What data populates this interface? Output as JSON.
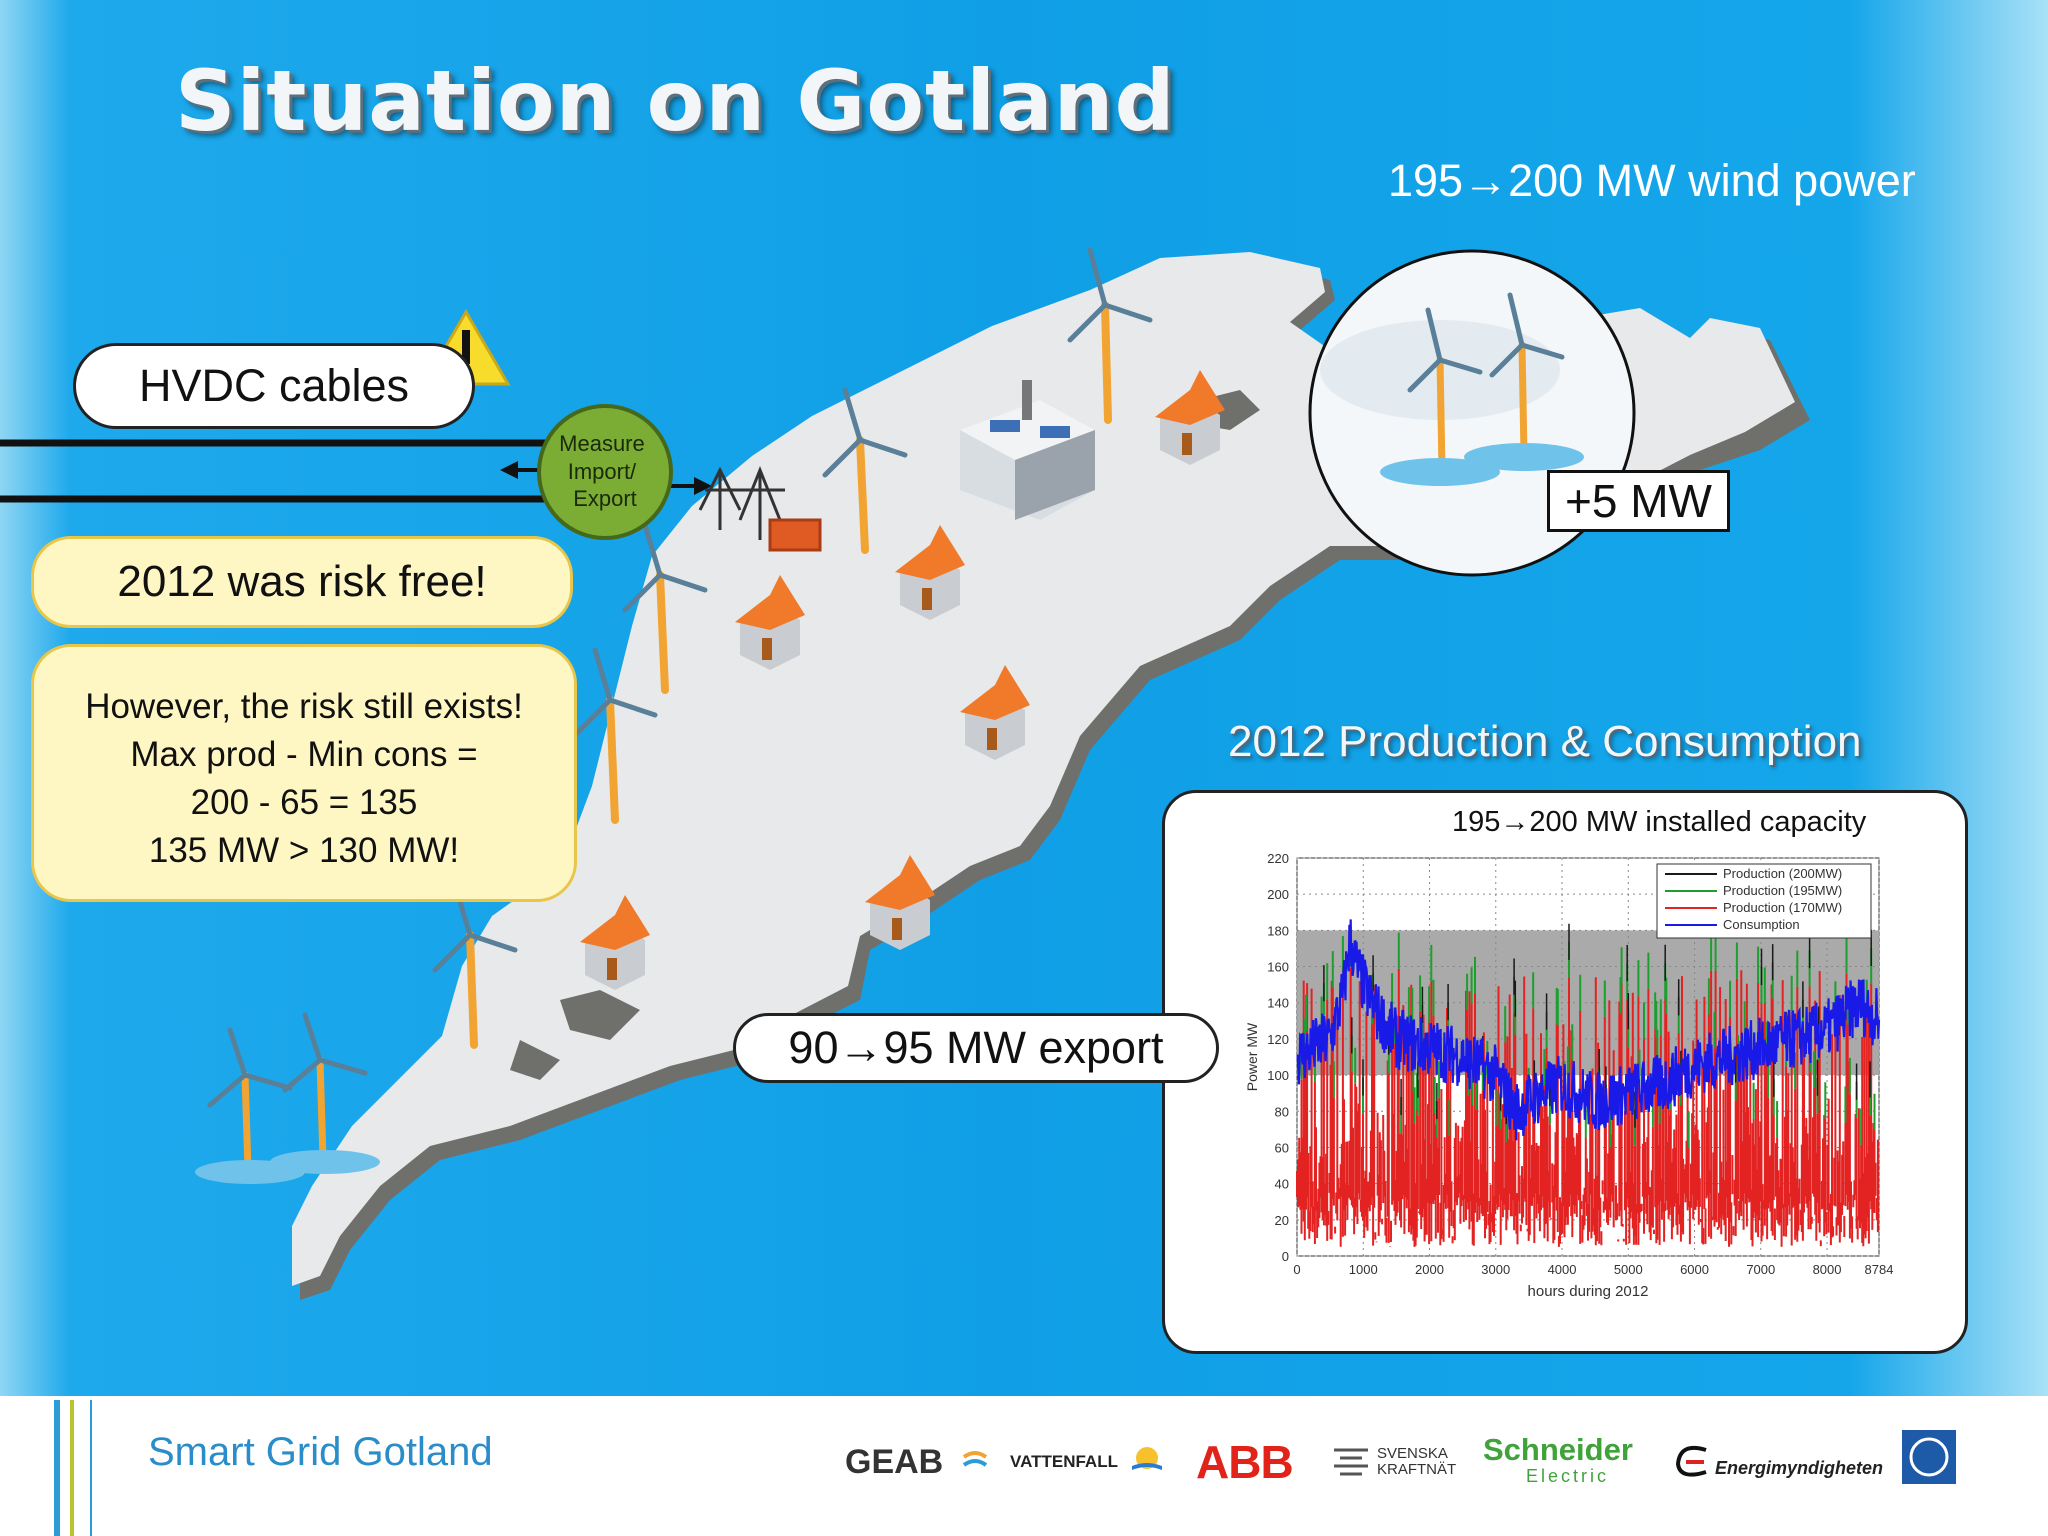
{
  "slide": {
    "title": "Situation on Gotland",
    "wind_caption": "195→200 MW wind power",
    "hvdc_label": "HVDC cables",
    "measure_lines": [
      "Measure",
      "Import/",
      "Export"
    ],
    "risk_free": "2012 was risk free!",
    "risk_lines": [
      "However, the risk still exists!",
      "Max prod - Min cons =",
      "200 - 65 = 135",
      "135 MW > 130 MW!"
    ],
    "plus_mw": "+5 MW",
    "export_label": "90→95 MW export",
    "chart_heading": "2012 Production & Consumption",
    "capacity_label": "195→200 MW installed capacity"
  },
  "chart_data": {
    "type": "line",
    "xlabel": "hours during 2012",
    "ylabel": "Power MW",
    "xlim": [
      0,
      8784
    ],
    "ylim": [
      0,
      220
    ],
    "x_ticks": [
      0,
      1000,
      2000,
      3000,
      4000,
      5000,
      6000,
      7000,
      8000,
      8784
    ],
    "y_ticks": [
      0,
      20,
      40,
      60,
      80,
      100,
      120,
      140,
      160,
      180,
      200,
      220
    ],
    "grid": true,
    "legend_position": "top-right",
    "shaded_band": [
      100,
      180
    ],
    "series": [
      {
        "name": "Production (200MW)",
        "color": "#1a1a1a"
      },
      {
        "name": "Production (195MW)",
        "color": "#1e9e2e"
      },
      {
        "name": "Production (170MW)",
        "color": "#e32222"
      },
      {
        "name": "Consumption",
        "color": "#1a1ae8"
      }
    ],
    "consumption_profile": {
      "x": [
        0,
        500,
        700,
        800,
        900,
        1000,
        1200,
        1500,
        2000,
        2500,
        3000,
        3300,
        3600,
        4000,
        4500,
        5000,
        5500,
        6000,
        6500,
        7000,
        7500,
        8000,
        8500,
        8784
      ],
      "y": [
        110,
        120,
        145,
        175,
        160,
        150,
        135,
        120,
        115,
        110,
        100,
        80,
        88,
        95,
        85,
        90,
        95,
        105,
        110,
        115,
        120,
        125,
        140,
        130
      ]
    }
  },
  "footer": {
    "project": "Smart Grid Gotland",
    "logos": [
      "GEAB",
      "VATTENFALL",
      "ABB",
      "SVENSKA",
      "KRAFTNÄT",
      "Schneider",
      "Electric",
      "Energimyndigheten"
    ]
  },
  "colors": {
    "sea": "#109fe6",
    "land": "#e8eaec",
    "note_fill": "#fef7c4",
    "note_border": "#e8c64a",
    "measure_fill": "#7bac34",
    "shaded_band": "#aaaaaa"
  }
}
